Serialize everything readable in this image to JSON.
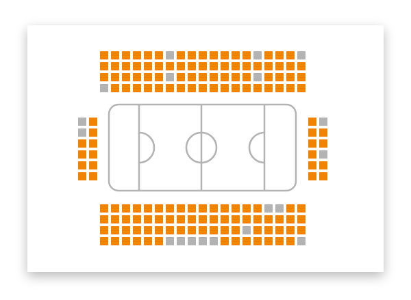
{
  "seat_map": {
    "colors": {
      "available": "#f08300",
      "taken": "#b3b3b3"
    },
    "sections": {
      "top": {
        "rows": [
          [
            1,
            1,
            1,
            1,
            1,
            1,
            0,
            1,
            1,
            1,
            1,
            1,
            1,
            1,
            0,
            1,
            1,
            1,
            0
          ],
          [
            1,
            1,
            1,
            1,
            1,
            1,
            1,
            1,
            1,
            1,
            1,
            1,
            1,
            1,
            1,
            1,
            1,
            1,
            1
          ],
          [
            1,
            1,
            1,
            1,
            1,
            1,
            0,
            1,
            1,
            1,
            1,
            1,
            1,
            1,
            0,
            1,
            1,
            1,
            1
          ],
          [
            0,
            1,
            1,
            1,
            1,
            1,
            1,
            1,
            1,
            1,
            1,
            1,
            1,
            1,
            1,
            1,
            1,
            1,
            1
          ]
        ]
      },
      "left": {
        "rows": [
          [
            0,
            1
          ],
          [
            0,
            1
          ],
          [
            1,
            1
          ],
          [
            1,
            1
          ],
          [
            1,
            1
          ],
          [
            1,
            1
          ]
        ]
      },
      "right": {
        "rows": [
          [
            1,
            0
          ],
          [
            1,
            1
          ],
          [
            1,
            1
          ],
          [
            1,
            0
          ],
          [
            1,
            1
          ],
          [
            1,
            1
          ]
        ]
      },
      "bottom": {
        "rows": [
          [
            1,
            1,
            1,
            1,
            1,
            1,
            1,
            1,
            1,
            1,
            1,
            1,
            1,
            1,
            1,
            0,
            0,
            1,
            1
          ],
          [
            1,
            1,
            1,
            1,
            1,
            1,
            1,
            1,
            1,
            1,
            1,
            1,
            1,
            1,
            1,
            1,
            1,
            1,
            1
          ],
          [
            1,
            1,
            1,
            1,
            1,
            1,
            1,
            1,
            1,
            1,
            1,
            1,
            1,
            0,
            1,
            1,
            1,
            1,
            1
          ],
          [
            1,
            1,
            1,
            1,
            1,
            1,
            0,
            0,
            0,
            0,
            0,
            1,
            1,
            1,
            1,
            1,
            1,
            1,
            0
          ]
        ]
      }
    }
  }
}
